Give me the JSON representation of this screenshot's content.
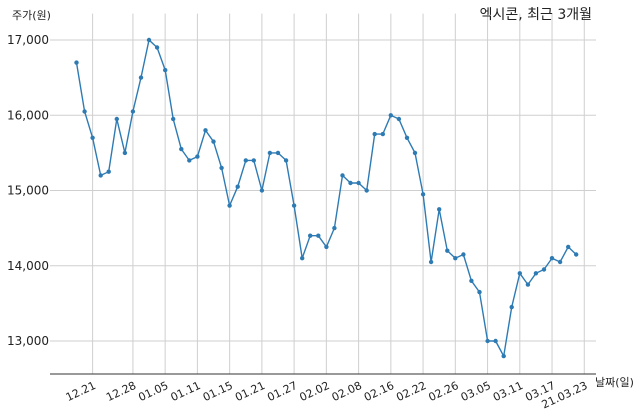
{
  "chart_data": {
    "type": "line",
    "title": "엑시콘, 최근 3개월",
    "ylabel": "주가(원)",
    "xlabel": "날짜(일)",
    "ylim": [
      12550,
      17350
    ],
    "yticks": [
      13000,
      14000,
      15000,
      16000,
      17000
    ],
    "ytick_labels": [
      "13,000",
      "14,000",
      "15,000",
      "16,000",
      "17,000"
    ],
    "xtick_labels": [
      "12.21",
      "12.28",
      "01.05",
      "01.11",
      "01.15",
      "01.21",
      "01.27",
      "02.02",
      "02.08",
      "02.16",
      "02.22",
      "02.26",
      "03.05",
      "03.11",
      "03.17",
      "21.03.23"
    ],
    "xtick_positions": [
      2,
      7,
      11,
      15,
      19,
      23,
      27,
      31,
      35,
      39,
      43,
      47,
      51,
      55,
      59,
      63
    ],
    "grid": true,
    "color": "#2e7bb4",
    "series": [
      {
        "values": [
          16700,
          16050,
          15700,
          15200,
          15250,
          15950,
          15500,
          16050,
          16500,
          17000,
          16900,
          16600,
          15950,
          15550,
          15400,
          15450,
          15800,
          15650,
          15300,
          14800,
          15050,
          15400,
          15400,
          15000,
          15500,
          15500,
          15400,
          14800,
          14100,
          14400,
          14400,
          14250,
          14500,
          15200,
          15100,
          15100,
          15000,
          15750,
          15750,
          16000,
          15950,
          15700,
          15500,
          14950,
          14050,
          14750,
          14200,
          14100,
          14150,
          13800,
          13650,
          13000,
          13000,
          12800,
          13450,
          13900,
          13750,
          13900,
          13950,
          14100,
          14050,
          14250,
          14150
        ]
      }
    ]
  }
}
